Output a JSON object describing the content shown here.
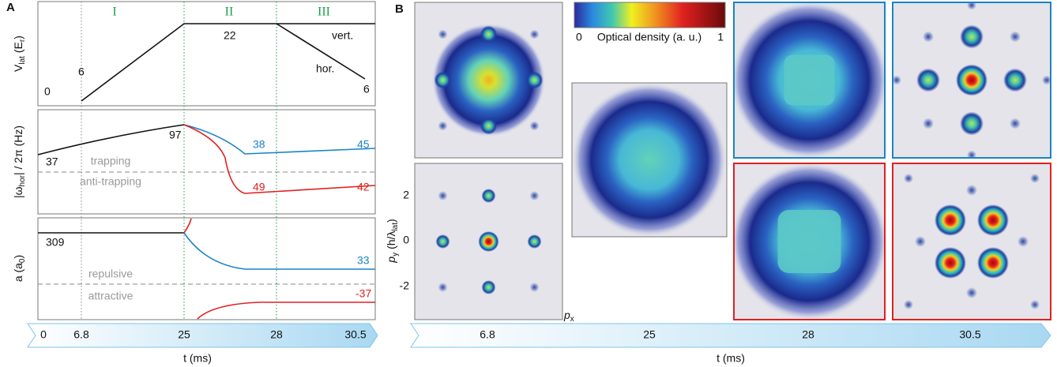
{
  "panel_a": {
    "label": "A",
    "phases": [
      "I",
      "II",
      "III"
    ],
    "lattice": {
      "ylabel": [
        "V",
        "lat",
        "(E",
        "r",
        ")"
      ],
      "start": "0",
      "ramp": "6",
      "plateau": "22",
      "vert": "vert.",
      "hor": "hor.",
      "end": "6"
    },
    "trap": {
      "ylabel": [
        "|ω",
        "hor",
        "| / 2π (Hz)"
      ],
      "trapping": "trapping",
      "anti_trapping": "anti-trapping",
      "start": "37",
      "peak": "97",
      "blue_mid": "38",
      "blue_end": "45",
      "red_mid": "49",
      "red_end": "42"
    },
    "scattering": {
      "ylabel": [
        "a (a",
        "0",
        ")"
      ],
      "repulsive": "repulsive",
      "attractive": "attractive",
      "start": "309",
      "blue_end": "33",
      "red_end": "-37"
    },
    "time_ticks": [
      "0",
      "6.8",
      "25",
      "28",
      "30.5"
    ],
    "xlabel": "t (ms)"
  },
  "panel_b": {
    "label": "B",
    "colorbar": {
      "min": "0",
      "label": "Optical density (a. u.)",
      "max": "1"
    },
    "ylabel": [
      "p",
      "y",
      "(h/λ",
      "lat",
      ")"
    ],
    "yticks": [
      "2",
      "0",
      "-2"
    ],
    "xaxis_label": [
      "p",
      "x"
    ],
    "time_ticks": [
      "6.8",
      "25",
      "28",
      "30.5"
    ],
    "xlabel": "t (ms)"
  }
}
